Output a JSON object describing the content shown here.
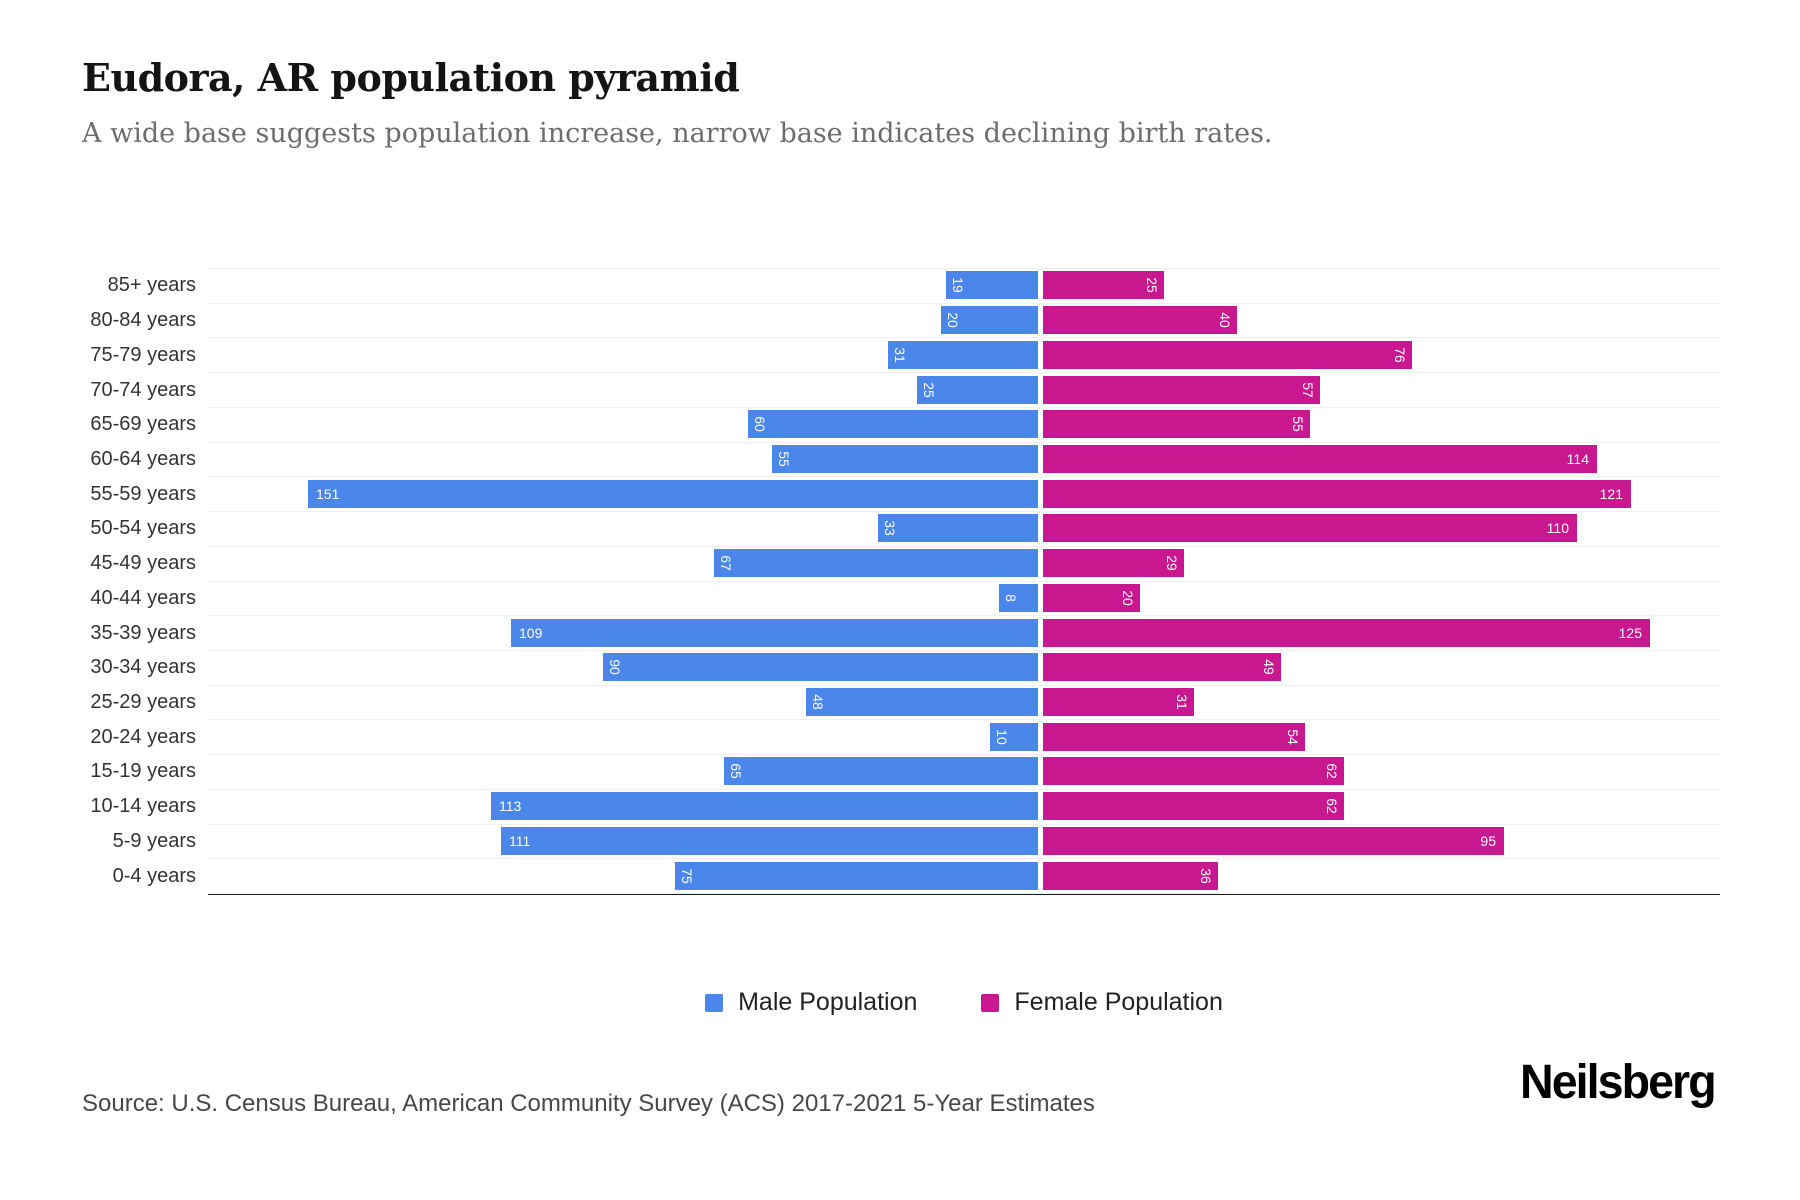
{
  "header": {
    "title": "Eudora, AR population pyramid",
    "subtitle": "A wide base suggests population increase, narrow base indicates declining birth rates."
  },
  "legend": {
    "items": [
      {
        "label": "Male Population",
        "color": "#4b86ea"
      },
      {
        "label": "Female Population",
        "color": "#c9188f"
      }
    ]
  },
  "footer": {
    "source": "Source: U.S. Census Bureau, American Community Survey (ACS) 2017-2021 5-Year Estimates",
    "brand": "Neilsberg"
  },
  "chart_data": {
    "type": "bar",
    "variant": "population-pyramid",
    "title": "Eudora, AR population pyramid",
    "xlabel": "",
    "ylabel": "",
    "grid": "horizontal-light",
    "legend_position": "bottom-center",
    "categories": [
      "85+ years",
      "80-84 years",
      "75-79 years",
      "70-74 years",
      "65-69 years",
      "60-64 years",
      "55-59 years",
      "50-54 years",
      "45-49 years",
      "40-44 years",
      "35-39 years",
      "30-34 years",
      "25-29 years",
      "20-24 years",
      "15-19 years",
      "10-14 years",
      "5-9 years",
      "0-4 years"
    ],
    "series": [
      {
        "name": "Male Population",
        "side": "left",
        "color": "#4b86ea",
        "axis_max": 172,
        "values": [
          19,
          20,
          31,
          25,
          60,
          55,
          151,
          33,
          67,
          8,
          109,
          90,
          48,
          10,
          65,
          113,
          111,
          75
        ],
        "label_rotated": [
          true,
          true,
          true,
          true,
          true,
          true,
          false,
          true,
          true,
          true,
          false,
          true,
          true,
          true,
          true,
          false,
          false,
          true
        ]
      },
      {
        "name": "Female Population",
        "side": "right",
        "color": "#c9188f",
        "axis_max": 140,
        "values": [
          25,
          40,
          76,
          57,
          55,
          114,
          121,
          110,
          29,
          20,
          125,
          49,
          31,
          54,
          62,
          62,
          95,
          36
        ],
        "label_rotated": [
          true,
          true,
          true,
          true,
          true,
          false,
          false,
          false,
          true,
          true,
          false,
          true,
          true,
          true,
          true,
          true,
          false,
          true
        ]
      }
    ]
  }
}
